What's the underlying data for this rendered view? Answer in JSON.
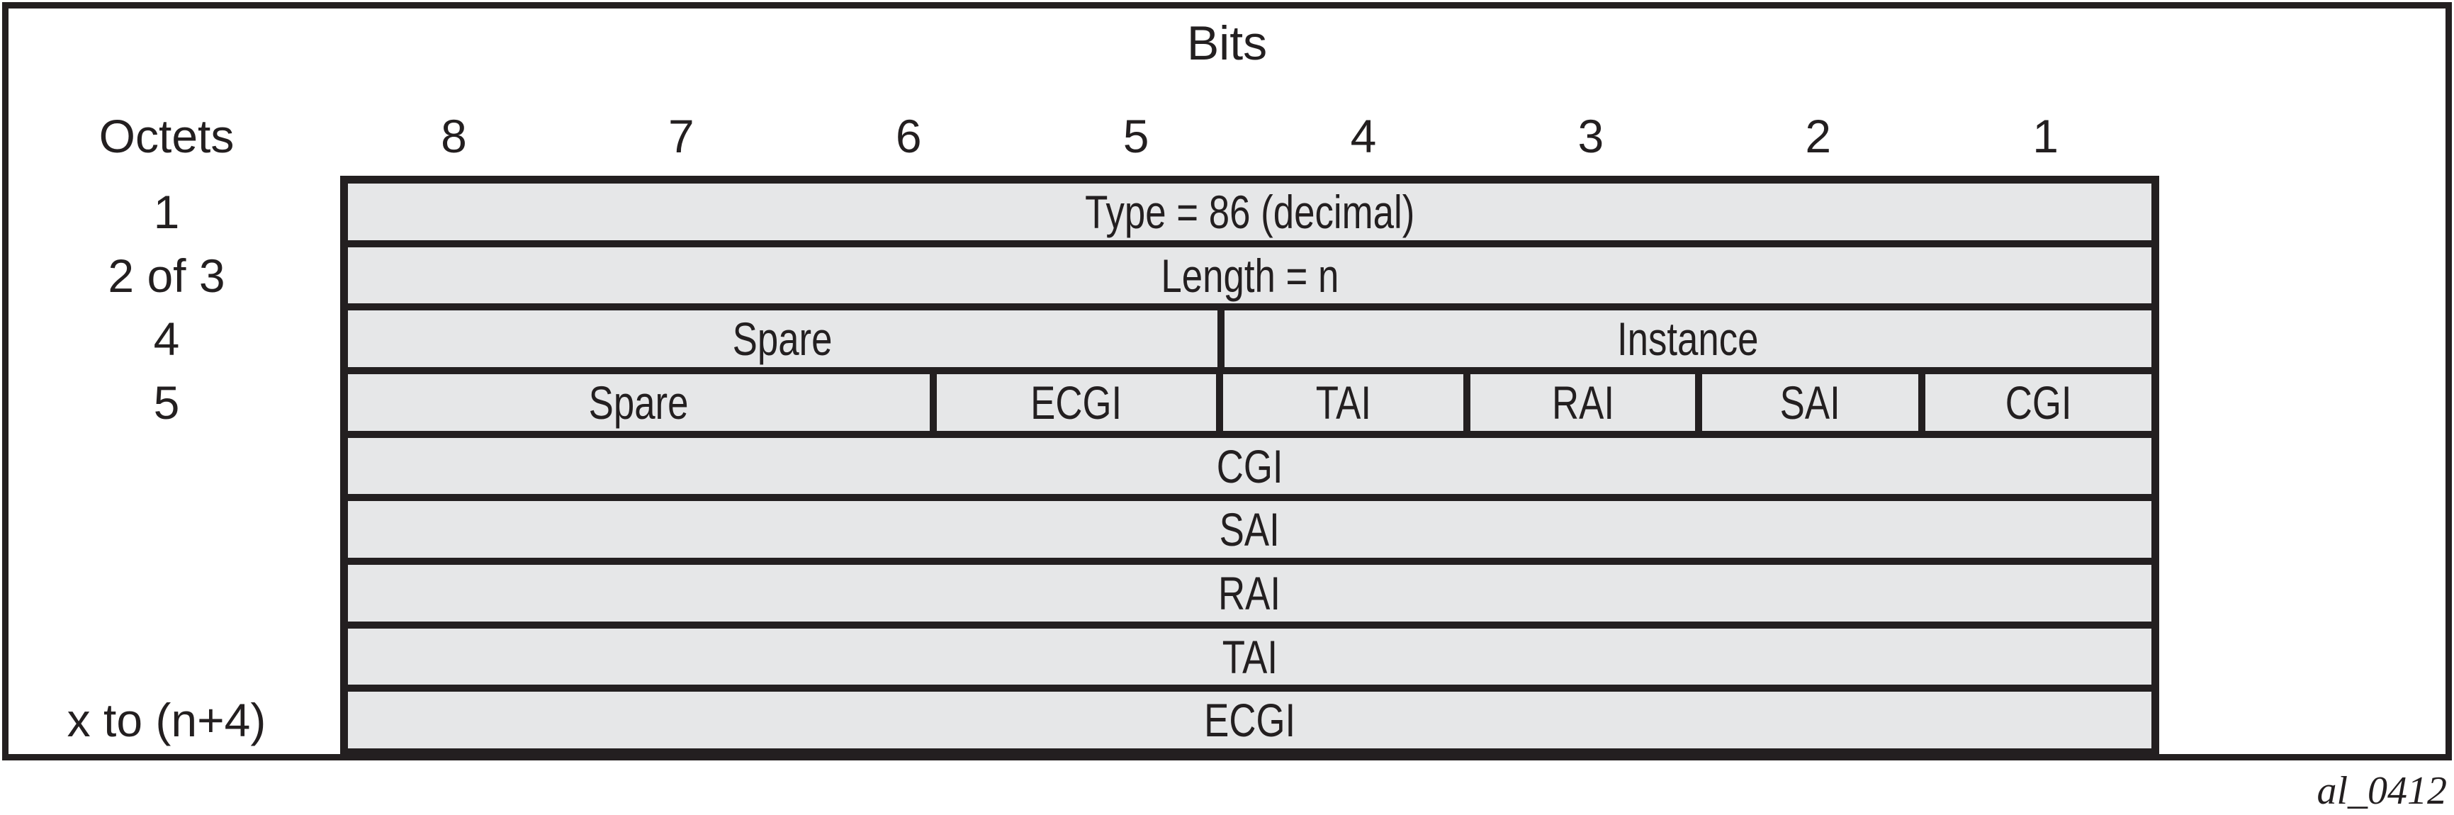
{
  "figure": {
    "title": "Bits",
    "octets_header": "Octets",
    "bit_numbers": [
      "8",
      "7",
      "6",
      "5",
      "4",
      "3",
      "2",
      "1"
    ],
    "figure_id": "al_0412",
    "colors": {
      "line": "#231f20",
      "cell_fill": "#e6e7e8",
      "background": "#ffffff"
    },
    "rows": [
      {
        "octet_label": "1",
        "cells": [
          {
            "label": "Type = 86 (decimal)",
            "span": 1000
          }
        ]
      },
      {
        "octet_label": "2 of 3",
        "cells": [
          {
            "label": "Length = n",
            "span": 1000
          }
        ]
      },
      {
        "octet_label": "4",
        "cells": [
          {
            "label": "Spare",
            "span": 484
          },
          {
            "label": "Instance",
            "span": 516
          }
        ]
      },
      {
        "octet_label": "5",
        "cells": [
          {
            "label": "Spare",
            "span": 329
          },
          {
            "label": "ECGI",
            "span": 158
          },
          {
            "label": "TAI",
            "span": 136
          },
          {
            "label": "RAI",
            "span": 127
          },
          {
            "label": "SAI",
            "span": 122
          },
          {
            "label": "CGI",
            "span": 128
          }
        ]
      },
      {
        "octet_label": "",
        "cells": [
          {
            "label": "CGI",
            "span": 1000
          }
        ]
      },
      {
        "octet_label": "",
        "cells": [
          {
            "label": "SAI",
            "span": 1000
          }
        ]
      },
      {
        "octet_label": "",
        "cells": [
          {
            "label": "RAI",
            "span": 1000
          }
        ]
      },
      {
        "octet_label": "",
        "cells": [
          {
            "label": "TAI",
            "span": 1000
          }
        ]
      },
      {
        "octet_label": "x to (n+4)",
        "cells": [
          {
            "label": "ECGI",
            "span": 1000
          }
        ]
      }
    ]
  }
}
